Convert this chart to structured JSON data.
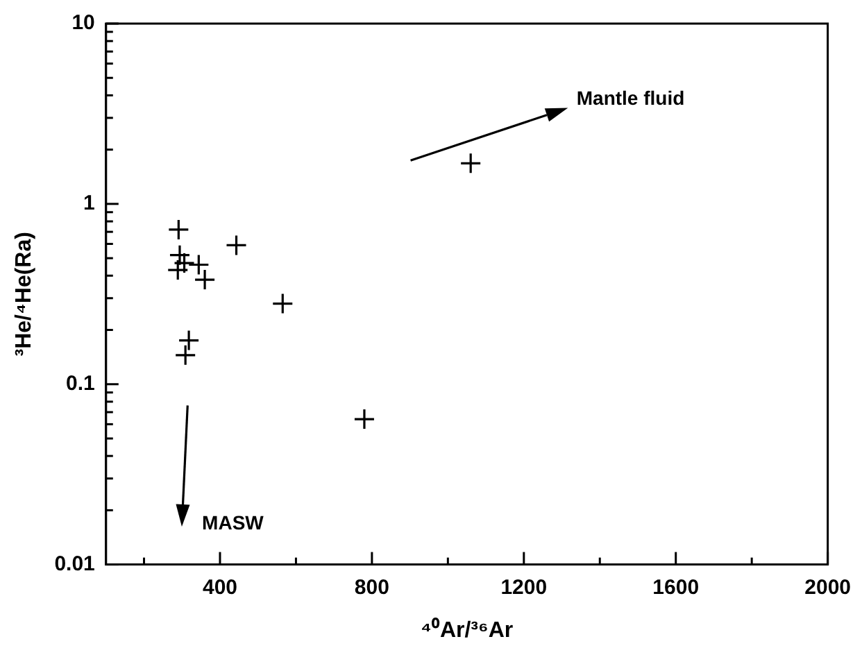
{
  "chart_data": {
    "type": "scatter",
    "xlabel": "⁴⁰Ar/³⁶Ar",
    "ylabel": "³He/⁴He(Ra)",
    "x": [
      291,
      443,
      294,
      306,
      289,
      344,
      360,
      565,
      318,
      309,
      1060,
      780
    ],
    "series": [
      {
        "color": "#000000",
        "values": [
          0.72,
          0.59,
          0.52,
          0.47,
          0.43,
          0.46,
          0.38,
          0.28,
          0.175,
          0.145,
          1.68,
          0.064
        ]
      }
    ],
    "xlim": [
      100,
      2000
    ],
    "xticks": [
      {
        "value": 200,
        "label": null
      },
      400,
      {
        "value": 600,
        "label": null
      },
      800,
      {
        "value": 1000,
        "label": null
      },
      1200,
      {
        "value": 1400,
        "label": null
      },
      1600,
      {
        "value": 1800,
        "label": null
      },
      2000
    ],
    "ylim": [
      0.01,
      10
    ],
    "yticks": [
      0.01,
      {
        "value": 0.02,
        "label": null
      },
      {
        "value": 0.03,
        "label": null
      },
      {
        "value": 0.04,
        "label": null
      },
      {
        "value": 0.05,
        "label": null
      },
      {
        "value": 0.06,
        "label": null
      },
      {
        "value": 0.07,
        "label": null
      },
      {
        "value": 0.08,
        "label": null
      },
      {
        "value": 0.09,
        "label": null
      },
      0.1,
      {
        "value": 0.2,
        "label": null
      },
      {
        "value": 0.3,
        "label": null
      },
      {
        "value": 0.4,
        "label": null
      },
      {
        "value": 0.5,
        "label": null
      },
      {
        "value": 0.6,
        "label": null
      },
      {
        "value": 0.7,
        "label": null
      },
      {
        "value": 0.8,
        "label": null
      },
      {
        "value": 0.9,
        "label": null
      },
      1,
      {
        "value": 2,
        "label": null
      },
      {
        "value": 3,
        "label": null
      },
      {
        "value": 4,
        "label": null
      },
      {
        "value": 5,
        "label": null
      },
      {
        "value": 6,
        "label": null
      },
      {
        "value": 7,
        "label": null
      },
      {
        "value": 8,
        "label": null
      },
      {
        "value": 9,
        "label": null
      },
      10
    ],
    "log": true,
    "grid": false,
    "legend": false,
    "marker": "cross",
    "annotations": [
      "Mantle fluid",
      "MASW"
    ]
  }
}
